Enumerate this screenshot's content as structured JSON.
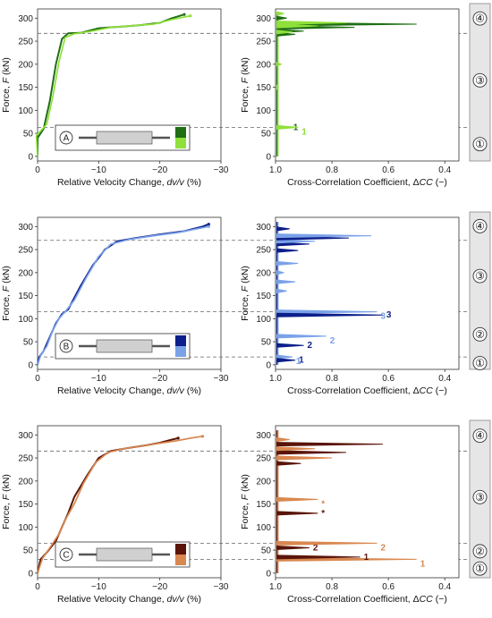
{
  "colors": {
    "A": {
      "dark": "#1f6e14",
      "light": "#8fe03a"
    },
    "B": {
      "dark": "#0d1f8a",
      "light": "#7aa2e8"
    },
    "C": {
      "dark": "#5a1508",
      "light": "#d98850"
    },
    "dashed": "#666666",
    "stage_panel": "#e6e6e6"
  },
  "axis_text": {
    "force_label": "Force, F (kN)",
    "force_label_main": "Force, ",
    "force_label_var": "F",
    "force_label_unit": " (kN)",
    "vel_label_main": "Relative Velocity Change, ",
    "vel_label_var": "dv/v",
    "vel_label_unit": " (%)",
    "cc_label_main": "Cross-Correlation Coefficient, Δ",
    "cc_label_var": "CC",
    "cc_label_unit": " (−)",
    "y_ticks": [
      "0",
      "50",
      "100",
      "150",
      "200",
      "250",
      "300"
    ],
    "vel_ticks": [
      "0",
      "−10",
      "−20",
      "−30"
    ],
    "cc_ticks": [
      "1.0",
      "0.8",
      "0.6",
      "0.4"
    ]
  },
  "chart_data": [
    {
      "panel": "A",
      "label": "A",
      "type": "line",
      "thresholds_kN": [
        63,
        267
      ],
      "stages": [
        "①",
        "③",
        "④"
      ],
      "velocity": {
        "xlim": [
          0,
          -30
        ],
        "ylim": [
          -10,
          320
        ],
        "series": [
          {
            "name": "1",
            "points": [
              [
                0,
                0
              ],
              [
                0,
                40
              ],
              [
                -1,
                60
              ],
              [
                -2,
                120
              ],
              [
                -3,
                200
              ],
              [
                -4,
                255
              ],
              [
                -5,
                267
              ],
              [
                -7,
                268
              ],
              [
                -10,
                278
              ],
              [
                -14,
                282
              ],
              [
                -17,
                285
              ],
              [
                -20,
                290
              ],
              [
                -22,
                300
              ],
              [
                -24,
                308
              ]
            ]
          },
          {
            "name": "2",
            "points": [
              [
                0,
                0
              ],
              [
                0.2,
                45
              ],
              [
                -1.5,
                70
              ],
              [
                -2.5,
                130
              ],
              [
                -3.5,
                205
              ],
              [
                -4.5,
                258
              ],
              [
                -6,
                266
              ],
              [
                -9,
                272
              ],
              [
                -12,
                280
              ],
              [
                -16,
                284
              ],
              [
                -19,
                287
              ],
              [
                -22,
                297
              ],
              [
                -25,
                305
              ]
            ]
          }
        ]
      },
      "cc": {
        "xlim": [
          1.0,
          0.35
        ],
        "ylim": [
          -10,
          320
        ],
        "peaks": [
          {
            "series": 0,
            "force": 63,
            "cc": 0.95,
            "label": "1"
          },
          {
            "series": 1,
            "force": 63,
            "cc": 0.92,
            "label": "1"
          },
          {
            "series": 0,
            "force": 265,
            "cc": 0.93
          },
          {
            "series": 0,
            "force": 272,
            "cc": 0.9
          },
          {
            "series": 0,
            "force": 280,
            "cc": 0.72
          },
          {
            "series": 0,
            "force": 287,
            "cc": 0.5
          },
          {
            "series": 1,
            "force": 270,
            "cc": 0.94
          },
          {
            "series": 1,
            "force": 283,
            "cc": 0.85
          },
          {
            "series": 1,
            "force": 290,
            "cc": 0.75
          },
          {
            "series": 0,
            "force": 300,
            "cc": 0.96
          },
          {
            "series": 1,
            "force": 310,
            "cc": 0.97
          },
          {
            "series": 1,
            "force": 150,
            "cc": 0.99
          },
          {
            "series": 1,
            "force": 200,
            "cc": 0.98
          }
        ]
      }
    },
    {
      "panel": "B",
      "label": "B",
      "type": "line",
      "thresholds_kN": [
        17,
        115,
        270
      ],
      "stages": [
        "①",
        "②",
        "③",
        "④"
      ],
      "velocity": {
        "xlim": [
          0,
          -30
        ],
        "ylim": [
          -10,
          320
        ],
        "series": [
          {
            "name": "1",
            "points": [
              [
                0,
                0
              ],
              [
                -0.3,
                17
              ],
              [
                -1,
                30
              ],
              [
                -2,
                60
              ],
              [
                -3,
                90
              ],
              [
                -4,
                110
              ],
              [
                -5,
                120
              ],
              [
                -7,
                170
              ],
              [
                -9,
                215
              ],
              [
                -11,
                250
              ],
              [
                -13,
                268
              ],
              [
                -16,
                275
              ],
              [
                -20,
                283
              ],
              [
                -24,
                290
              ],
              [
                -27,
                300
              ],
              [
                -28,
                305
              ]
            ]
          },
          {
            "name": "2",
            "points": [
              [
                0,
                0
              ],
              [
                -0.5,
                20
              ],
              [
                -1.5,
                40
              ],
              [
                -2.5,
                75
              ],
              [
                -3.5,
                100
              ],
              [
                -4.5,
                115
              ],
              [
                -6,
                140
              ],
              [
                -8,
                190
              ],
              [
                -10,
                235
              ],
              [
                -12,
                262
              ],
              [
                -15,
                272
              ],
              [
                -19,
                280
              ],
              [
                -23,
                287
              ],
              [
                -26,
                295
              ],
              [
                -28,
                300
              ]
            ]
          }
        ]
      },
      "cc": {
        "xlim": [
          1.0,
          0.35
        ],
        "ylim": [
          -10,
          320
        ],
        "peaks": [
          {
            "series": 1,
            "force": 17,
            "cc": 0.94,
            "label": "1"
          },
          {
            "series": 0,
            "force": 10,
            "cc": 0.93,
            "label": "1"
          },
          {
            "series": 0,
            "force": 42,
            "cc": 0.9,
            "label": "2"
          },
          {
            "series": 1,
            "force": 62,
            "cc": 0.82,
            "label": "2"
          },
          {
            "series": 1,
            "force": 115,
            "cc": 0.64,
            "label": "3"
          },
          {
            "series": 0,
            "force": 108,
            "cc": 0.62,
            "label": "3"
          },
          {
            "series": 1,
            "force": 160,
            "cc": 0.96
          },
          {
            "series": 1,
            "force": 180,
            "cc": 0.93
          },
          {
            "series": 1,
            "force": 200,
            "cc": 0.97
          },
          {
            "series": 1,
            "force": 220,
            "cc": 0.92
          },
          {
            "series": 0,
            "force": 248,
            "cc": 0.92
          },
          {
            "series": 0,
            "force": 262,
            "cc": 0.88
          },
          {
            "series": 1,
            "force": 268,
            "cc": 0.86
          },
          {
            "series": 0,
            "force": 275,
            "cc": 0.74
          },
          {
            "series": 1,
            "force": 280,
            "cc": 0.66
          },
          {
            "series": 0,
            "force": 295,
            "cc": 0.95
          }
        ]
      }
    },
    {
      "panel": "C",
      "label": "C",
      "type": "line",
      "thresholds_kN": [
        30,
        65,
        265
      ],
      "stages": [
        "①",
        "②",
        "③",
        "④"
      ],
      "velocity": {
        "xlim": [
          0,
          -30
        ],
        "ylim": [
          -10,
          320
        ],
        "series": [
          {
            "name": "1",
            "points": [
              [
                0,
                0
              ],
              [
                -0.5,
                30
              ],
              [
                -1.5,
                45
              ],
              [
                -3,
                70
              ],
              [
                -4,
                100
              ],
              [
                -5,
                130
              ],
              [
                -6,
                165
              ],
              [
                -8,
                210
              ],
              [
                -10,
                250
              ],
              [
                -12,
                265
              ],
              [
                -15,
                272
              ],
              [
                -18,
                278
              ],
              [
                -20,
                283
              ],
              [
                -22,
                290
              ],
              [
                -23,
                293
              ]
            ]
          },
          {
            "name": "2",
            "points": [
              [
                0,
                0
              ],
              [
                -0.8,
                32
              ],
              [
                -2,
                55
              ],
              [
                -3.5,
                85
              ],
              [
                -4.5,
                115
              ],
              [
                -6,
                150
              ],
              [
                -7.5,
                195
              ],
              [
                -9.5,
                240
              ],
              [
                -11.5,
                262
              ],
              [
                -14,
                270
              ],
              [
                -17,
                276
              ],
              [
                -20,
                282
              ],
              [
                -23,
                288
              ],
              [
                -25,
                293
              ],
              [
                -27,
                297
              ]
            ]
          }
        ]
      },
      "cc": {
        "xlim": [
          1.0,
          0.35
        ],
        "ylim": [
          -10,
          320
        ],
        "peaks": [
          {
            "series": 1,
            "force": 30,
            "cc": 0.5,
            "label": "1"
          },
          {
            "series": 0,
            "force": 35,
            "cc": 0.7,
            "label": "1"
          },
          {
            "series": 0,
            "force": 55,
            "cc": 0.88,
            "label": "2"
          },
          {
            "series": 1,
            "force": 65,
            "cc": 0.64,
            "label": "2"
          },
          {
            "series": 1,
            "force": 160,
            "cc": 0.85,
            "label": "*"
          },
          {
            "series": 0,
            "force": 130,
            "cc": 0.85,
            "label": "*"
          },
          {
            "series": 0,
            "force": 238,
            "cc": 0.91
          },
          {
            "series": 1,
            "force": 250,
            "cc": 0.8
          },
          {
            "series": 0,
            "force": 262,
            "cc": 0.75
          },
          {
            "series": 1,
            "force": 270,
            "cc": 0.86
          },
          {
            "series": 0,
            "force": 280,
            "cc": 0.62
          },
          {
            "series": 1,
            "force": 290,
            "cc": 0.95
          }
        ]
      }
    }
  ]
}
